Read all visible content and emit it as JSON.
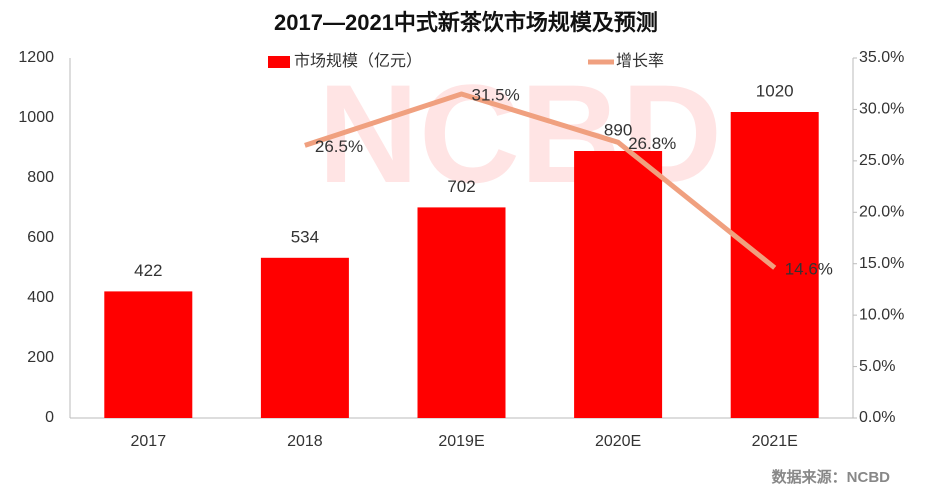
{
  "chart_data": {
    "type": "bar",
    "title": "2017—2021中式新茶饮市场规模及预测",
    "watermark": "NCBD",
    "categories": [
      "2017",
      "2018",
      "2019E",
      "2020E",
      "2021E"
    ],
    "series": [
      {
        "name": "市场规模（亿元）",
        "type": "bar",
        "color": "#ff0000",
        "values": [
          422,
          534,
          702,
          890,
          1020
        ]
      },
      {
        "name": "增长率",
        "type": "line",
        "axis": "y2",
        "color": "#f0a07f",
        "values": [
          null,
          26.5,
          31.5,
          26.8,
          14.6
        ],
        "value_labels": [
          null,
          "26.5%",
          "31.5%",
          "26.8%",
          "14.6%"
        ]
      }
    ],
    "ylim": [
      0,
      1200
    ],
    "yticks": [
      0,
      200,
      400,
      600,
      800,
      1000,
      1200
    ],
    "y2lim": [
      0,
      35
    ],
    "y2ticks": [
      {
        "value": 0,
        "label": "0.0%"
      },
      {
        "value": 5,
        "label": "5.0%"
      },
      {
        "value": 10,
        "label": "10.0%"
      },
      {
        "value": 15,
        "label": "15.0%"
      },
      {
        "value": 20,
        "label": "20.0%"
      },
      {
        "value": 25,
        "label": "25.0%"
      },
      {
        "value": 30,
        "label": "30.0%"
      },
      {
        "value": 35,
        "label": "35.0%"
      }
    ],
    "grid": false,
    "source": "数据来源：NCBD"
  }
}
